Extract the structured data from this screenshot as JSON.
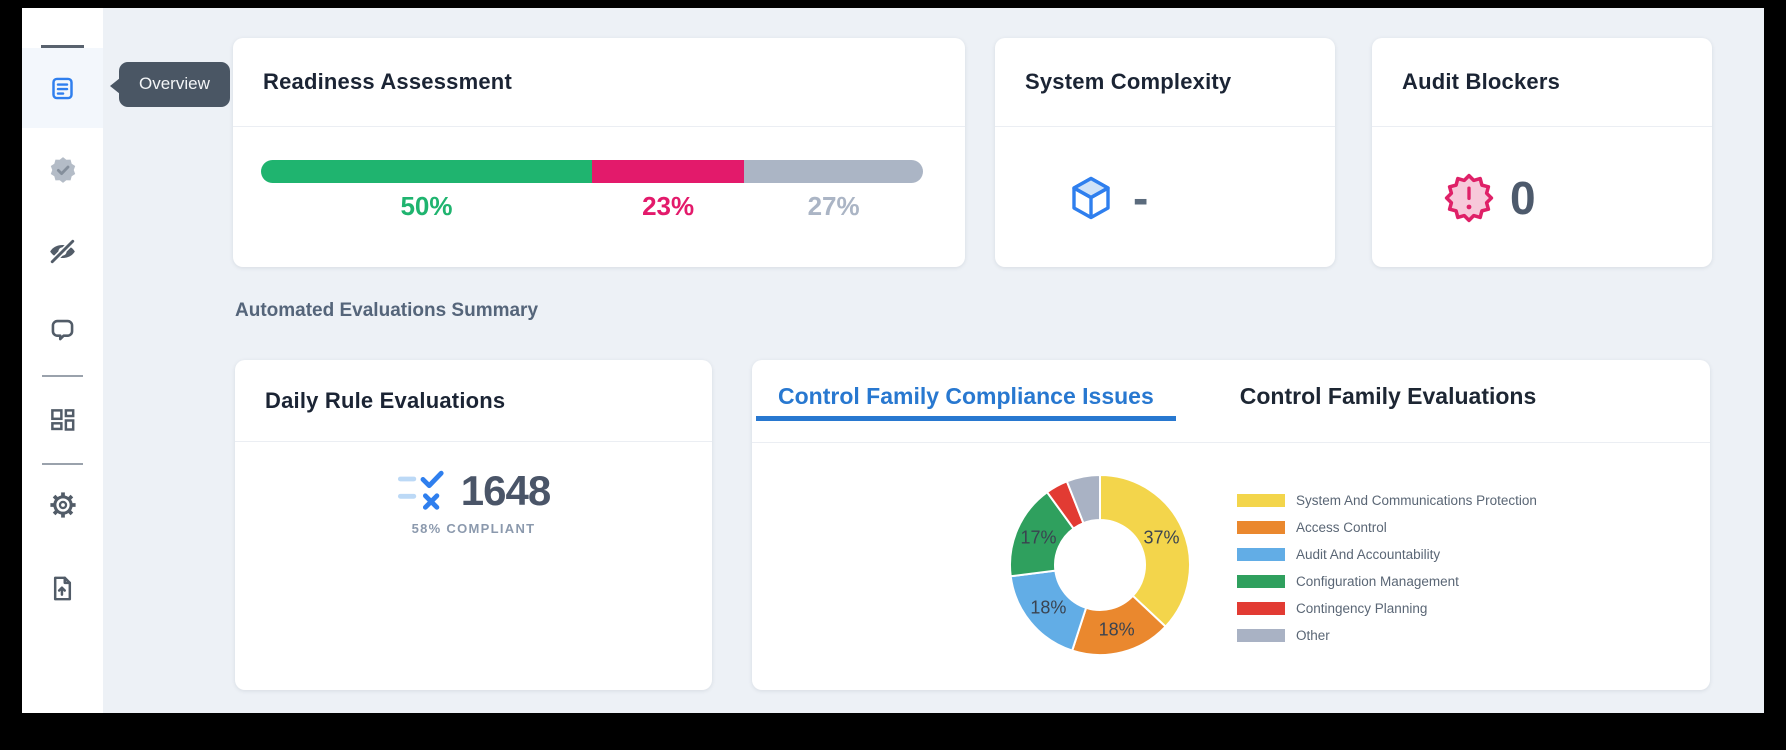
{
  "sidebar": {
    "tooltip": "Overview",
    "items": [
      {
        "id": "overview",
        "icon": "document-icon",
        "active": true
      },
      {
        "id": "compliance",
        "icon": "badge-check-icon",
        "active": false
      },
      {
        "id": "hidden",
        "icon": "eye-off-icon",
        "active": false
      },
      {
        "id": "comments",
        "icon": "chat-icon",
        "active": false
      },
      {
        "id": "dashboard",
        "icon": "dashboard-icon",
        "active": false
      },
      {
        "id": "settings",
        "icon": "gear-icon",
        "active": false
      },
      {
        "id": "export",
        "icon": "file-upload-icon",
        "active": false
      }
    ]
  },
  "cards": {
    "readiness": {
      "title": "Readiness Assessment",
      "segments": [
        {
          "label": "50%",
          "value": 50,
          "color": "#1fb46f"
        },
        {
          "label": "23%",
          "value": 23,
          "color": "#e31a6b"
        },
        {
          "label": "27%",
          "value": 27,
          "color": "#abb5c5"
        }
      ]
    },
    "system_complexity": {
      "title": "System Complexity",
      "value": "-"
    },
    "audit_blockers": {
      "title": "Audit Blockers",
      "value": "0"
    }
  },
  "section_label": "Automated Evaluations Summary",
  "daily": {
    "title": "Daily Rule Evaluations",
    "value": "1648",
    "subtext": "58% COMPLIANT"
  },
  "tabs": [
    {
      "label": "Control Family Compliance Issues",
      "active": true
    },
    {
      "label": "Control Family Evaluations",
      "active": false
    }
  ],
  "chart_data": {
    "type": "pie",
    "donut": true,
    "title": "Control Family Compliance Issues",
    "labels": [
      "System And Communications Protection",
      "Access Control",
      "Audit And Accountability",
      "Configuration Management",
      "Contingency Planning",
      "Other"
    ],
    "values": [
      37,
      18,
      18,
      17,
      4,
      6
    ],
    "colors": [
      "#f3d54b",
      "#ea882e",
      "#62ade6",
      "#2fa05e",
      "#e23b33",
      "#a9b2c4"
    ],
    "data_labels": [
      "37%",
      "18%",
      "18%",
      "17%",
      "",
      ""
    ],
    "legend_position": "right"
  },
  "theme": {
    "accent_blue": "#2878d0",
    "green": "#1fb46f",
    "pink": "#e31a6b",
    "gray": "#abb5c5"
  }
}
